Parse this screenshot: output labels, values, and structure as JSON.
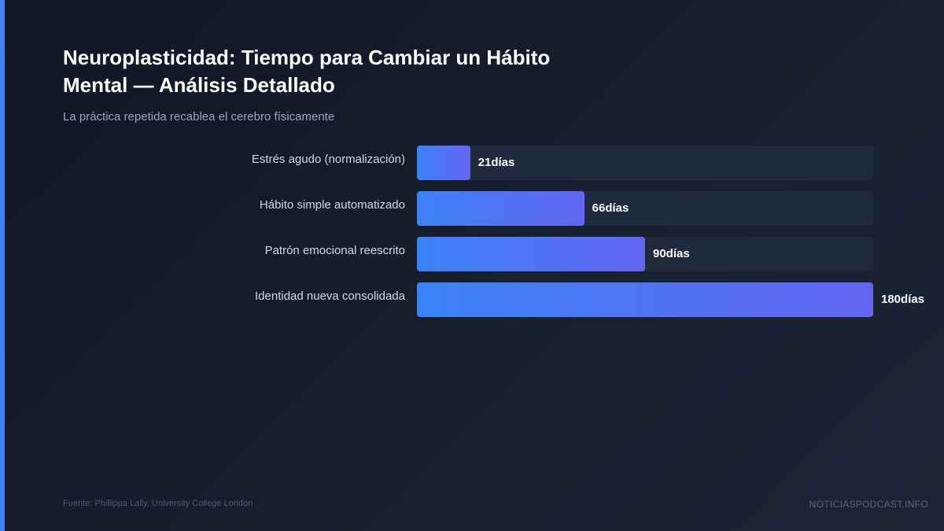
{
  "title": "Neuroplasticidad: Tiempo para Cambiar un Hábito Mental — Análisis Detallado",
  "subtitle": "La práctica repetida recablea el cerebro físicamente",
  "footer": {
    "source": "Fuente: Phillippa Lally, University College London",
    "brand": "NOTICIASPODCAST.INFO"
  },
  "colors": {
    "accent": "#3b82f6",
    "bar_start": "#3b82f6",
    "bar_end": "#6366f1",
    "track": "#1f2a3c",
    "background": "#111827"
  },
  "chart_data": {
    "type": "bar",
    "orientation": "horizontal",
    "categories": [
      "Estrés agudo (normalización)",
      "Hábito simple automatizado",
      "Patrón emocional reescrito",
      "Identidad nueva consolidada"
    ],
    "values": [
      21,
      66,
      90,
      180
    ],
    "value_suffix": "días",
    "xlim": [
      0,
      180
    ],
    "grid": false
  }
}
